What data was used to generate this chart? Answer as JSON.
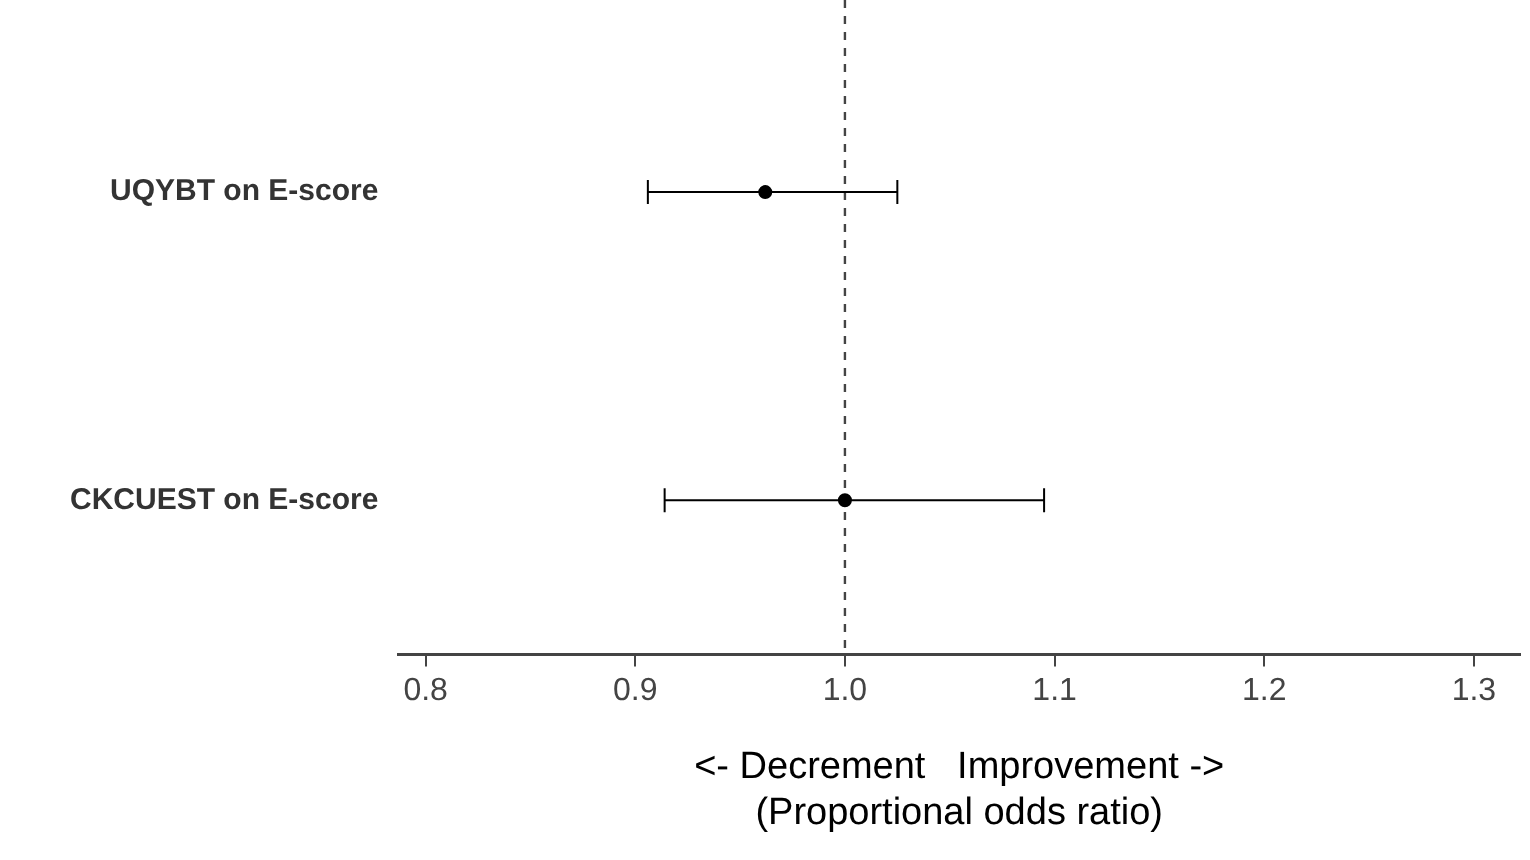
{
  "chart_data": {
    "type": "scatter",
    "orientation": "horizontal",
    "categories": [
      "UQYBT on E-score",
      "CKCUEST on E-score"
    ],
    "values": [
      0.962,
      1.0
    ],
    "errors": [
      [
        0.906,
        1.025
      ],
      [
        0.914,
        1.095
      ]
    ],
    "color": "#000000",
    "xlim": [
      0.787,
      1.322
    ],
    "xticks": [
      {
        "value": 0.8,
        "label": "0.8"
      },
      {
        "value": 0.9,
        "label": "0.9"
      },
      {
        "value": 1.0,
        "label": "1.0"
      },
      {
        "value": 1.1,
        "label": "1.1"
      },
      {
        "value": 1.2,
        "label": "1.2"
      },
      {
        "value": 1.3,
        "label": "1.3"
      }
    ],
    "xlabel": "<- Decrement   Improvement ->\n(Proportional odds ratio)",
    "ref_lines": [
      {
        "axis": "x",
        "value": 1.0,
        "line_style": "dashed",
        "color": "#444444"
      }
    ],
    "grid": false,
    "legend": false,
    "marker": "circle"
  }
}
